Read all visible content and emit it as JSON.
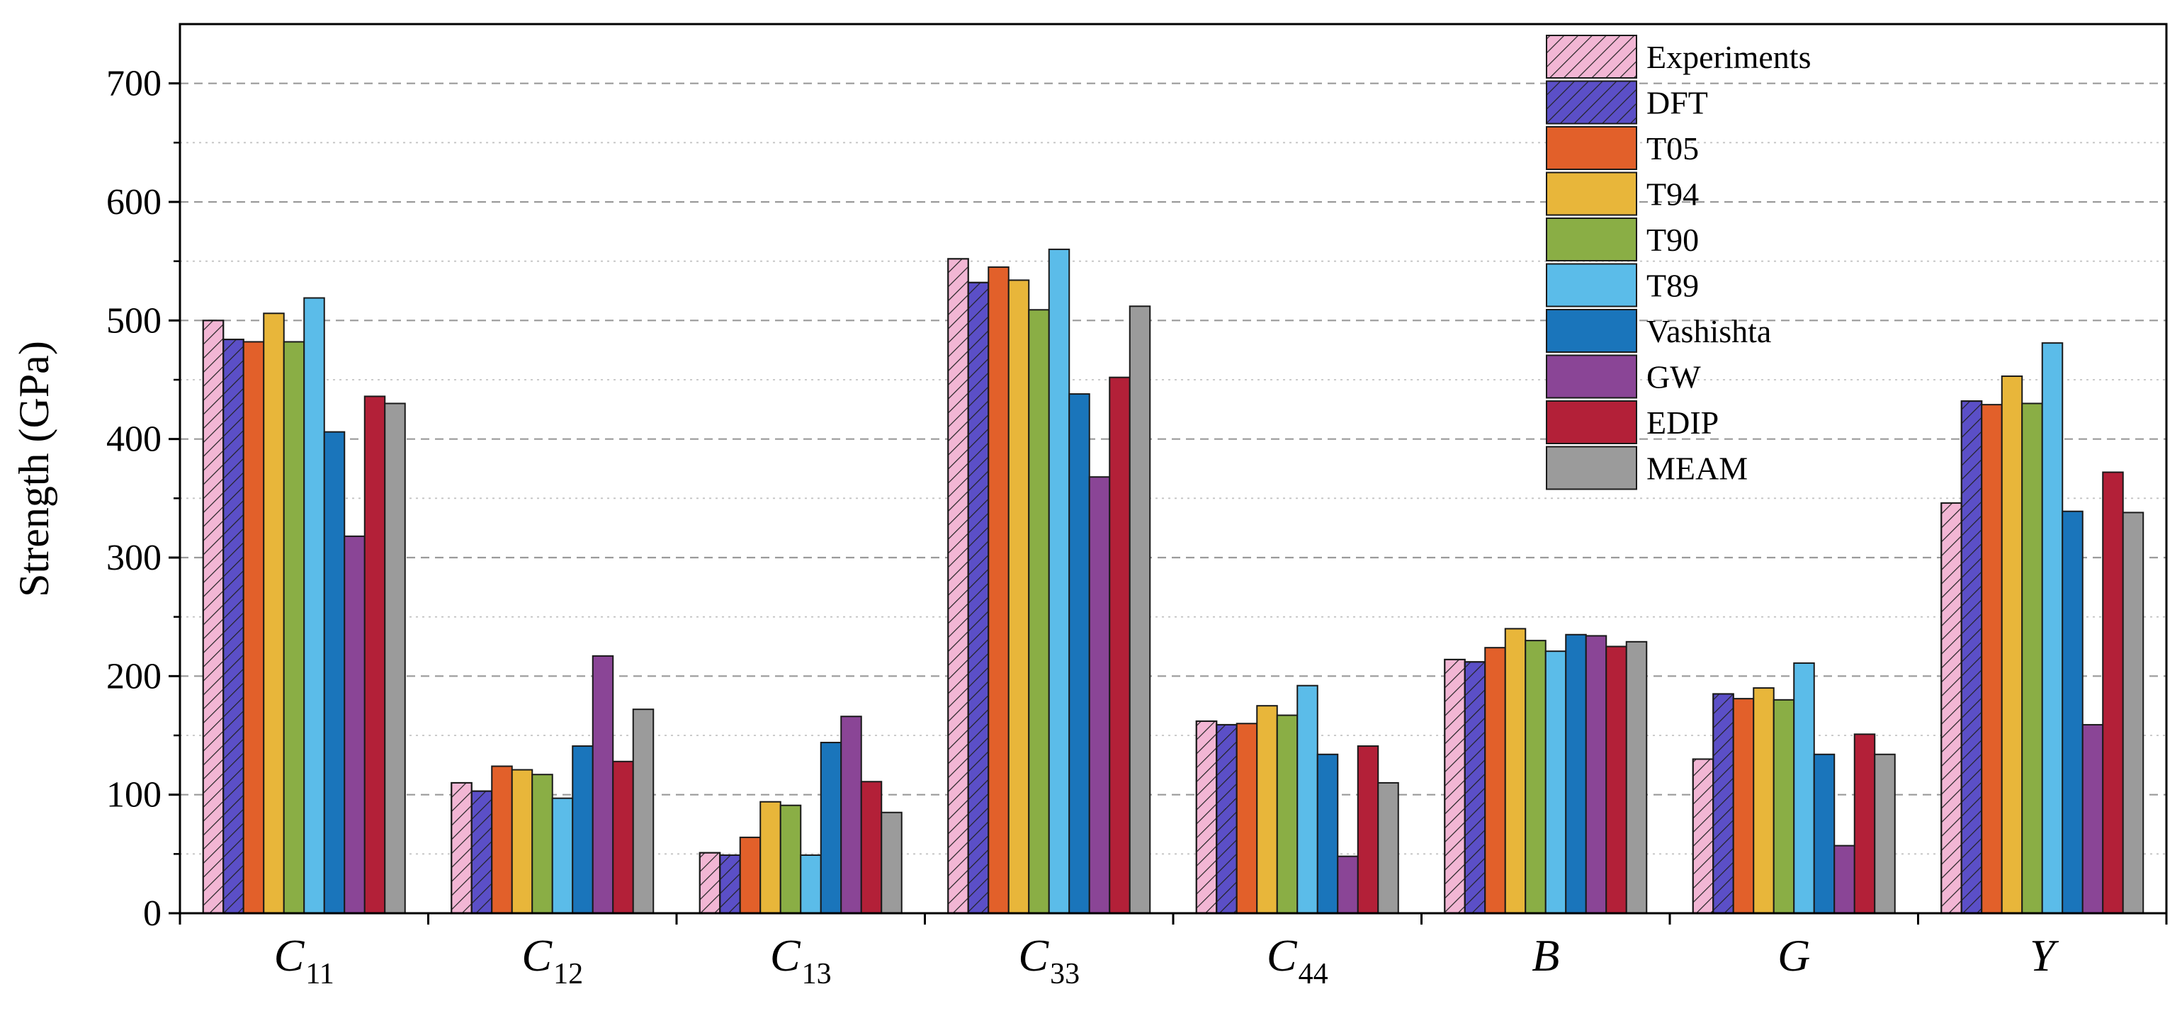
{
  "chart_data": {
    "type": "bar",
    "title": "",
    "xlabel": "",
    "ylabel": "Strength (GPa)",
    "ylim": [
      0,
      750
    ],
    "yticks": [
      0,
      100,
      200,
      300,
      400,
      500,
      600,
      700
    ],
    "grid": "horizontal dashed at major ticks, dotted at minor ticks",
    "legend_position": "top-right",
    "categories": [
      {
        "main": "C",
        "sub": "11"
      },
      {
        "main": "C",
        "sub": "12"
      },
      {
        "main": "C",
        "sub": "13"
      },
      {
        "main": "C",
        "sub": "33"
      },
      {
        "main": "C",
        "sub": "44"
      },
      {
        "main": "B",
        "sub": ""
      },
      {
        "main": "G",
        "sub": ""
      },
      {
        "main": "Y",
        "sub": ""
      }
    ],
    "series": [
      {
        "name": "Experiments",
        "color": "#f2b6d4",
        "hatch": true,
        "values": [
          500,
          110,
          51,
          552,
          162,
          214,
          130,
          346
        ]
      },
      {
        "name": "DFT",
        "color": "#5b4fc7",
        "hatch": true,
        "values": [
          484,
          103,
          49,
          532,
          159,
          212,
          185,
          432
        ]
      },
      {
        "name": "T05",
        "color": "#e2602a",
        "hatch": false,
        "values": [
          482,
          124,
          64,
          545,
          160,
          224,
          181,
          429
        ]
      },
      {
        "name": "T94",
        "color": "#e8b63a",
        "hatch": false,
        "values": [
          506,
          121,
          94,
          534,
          175,
          240,
          190,
          453
        ]
      },
      {
        "name": "T90",
        "color": "#8aae45",
        "hatch": false,
        "values": [
          482,
          117,
          91,
          509,
          167,
          230,
          180,
          430
        ]
      },
      {
        "name": "T89",
        "color": "#5bbce9",
        "hatch": false,
        "values": [
          519,
          97,
          49,
          560,
          192,
          221,
          211,
          481
        ]
      },
      {
        "name": "Vashishta",
        "color": "#1a75bb",
        "hatch": false,
        "values": [
          406,
          141,
          144,
          438,
          134,
          235,
          134,
          339
        ]
      },
      {
        "name": "GW",
        "color": "#8a4596",
        "hatch": false,
        "values": [
          318,
          217,
          166,
          368,
          48,
          234,
          57,
          159
        ]
      },
      {
        "name": "EDIP",
        "color": "#b32038",
        "hatch": false,
        "values": [
          436,
          128,
          111,
          452,
          141,
          225,
          151,
          372
        ]
      },
      {
        "name": "MEAM",
        "color": "#9b9b9b",
        "hatch": false,
        "values": [
          430,
          172,
          85,
          512,
          110,
          229,
          134,
          338
        ]
      }
    ]
  }
}
